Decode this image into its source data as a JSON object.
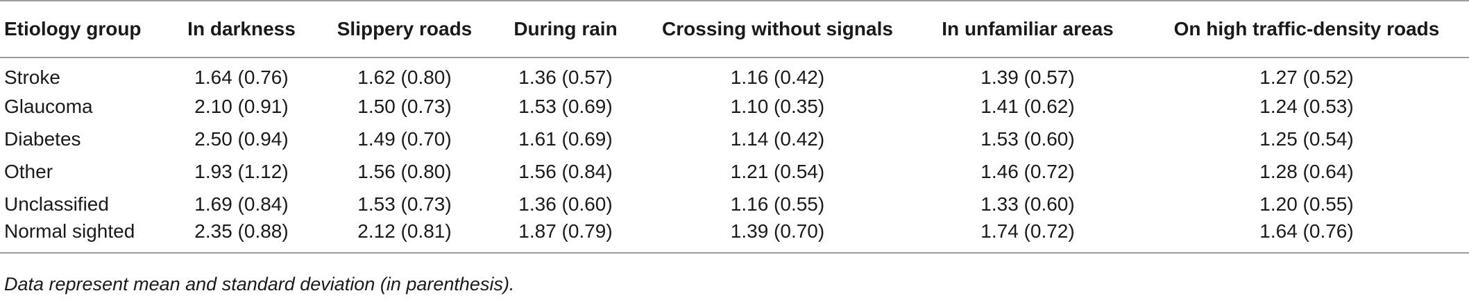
{
  "table": {
    "headers": [
      "Etiology group",
      "In darkness",
      "Slippery roads",
      "During rain",
      "Crossing without signals",
      "In unfamiliar areas",
      "On high traffic-density roads"
    ],
    "rows": [
      [
        "Stroke",
        "1.64 (0.76)",
        "1.62 (0.80)",
        "1.36 (0.57)",
        "1.16 (0.42)",
        "1.39 (0.57)",
        "1.27 (0.52)"
      ],
      [
        "Glaucoma",
        "2.10 (0.91)",
        "1.50 (0.73)",
        "1.53 (0.69)",
        "1.10 (0.35)",
        "1.41 (0.62)",
        "1.24 (0.53)"
      ],
      [
        "Diabetes",
        "2.50 (0.94)",
        "1.49 (0.70)",
        "1.61 (0.69)",
        "1.14 (0.42)",
        "1.53 (0.60)",
        "1.25 (0.54)"
      ],
      [
        "Other",
        "1.93 (1.12)",
        "1.56 (0.80)",
        "1.56 (0.84)",
        "1.21 (0.54)",
        "1.46 (0.72)",
        "1.28 (0.64)"
      ],
      [
        "Unclassified",
        "1.69 (0.84)",
        "1.53 (0.73)",
        "1.36 (0.60)",
        "1.16 (0.55)",
        "1.33 (0.60)",
        "1.20 (0.55)"
      ],
      [
        "Normal sighted",
        "2.35 (0.88)",
        "2.12 (0.81)",
        "1.87 (0.79)",
        "1.39 (0.70)",
        "1.74 (0.72)",
        "1.64 (0.76)"
      ]
    ]
  },
  "footnote": "Data represent mean and standard deviation (in parenthesis)."
}
